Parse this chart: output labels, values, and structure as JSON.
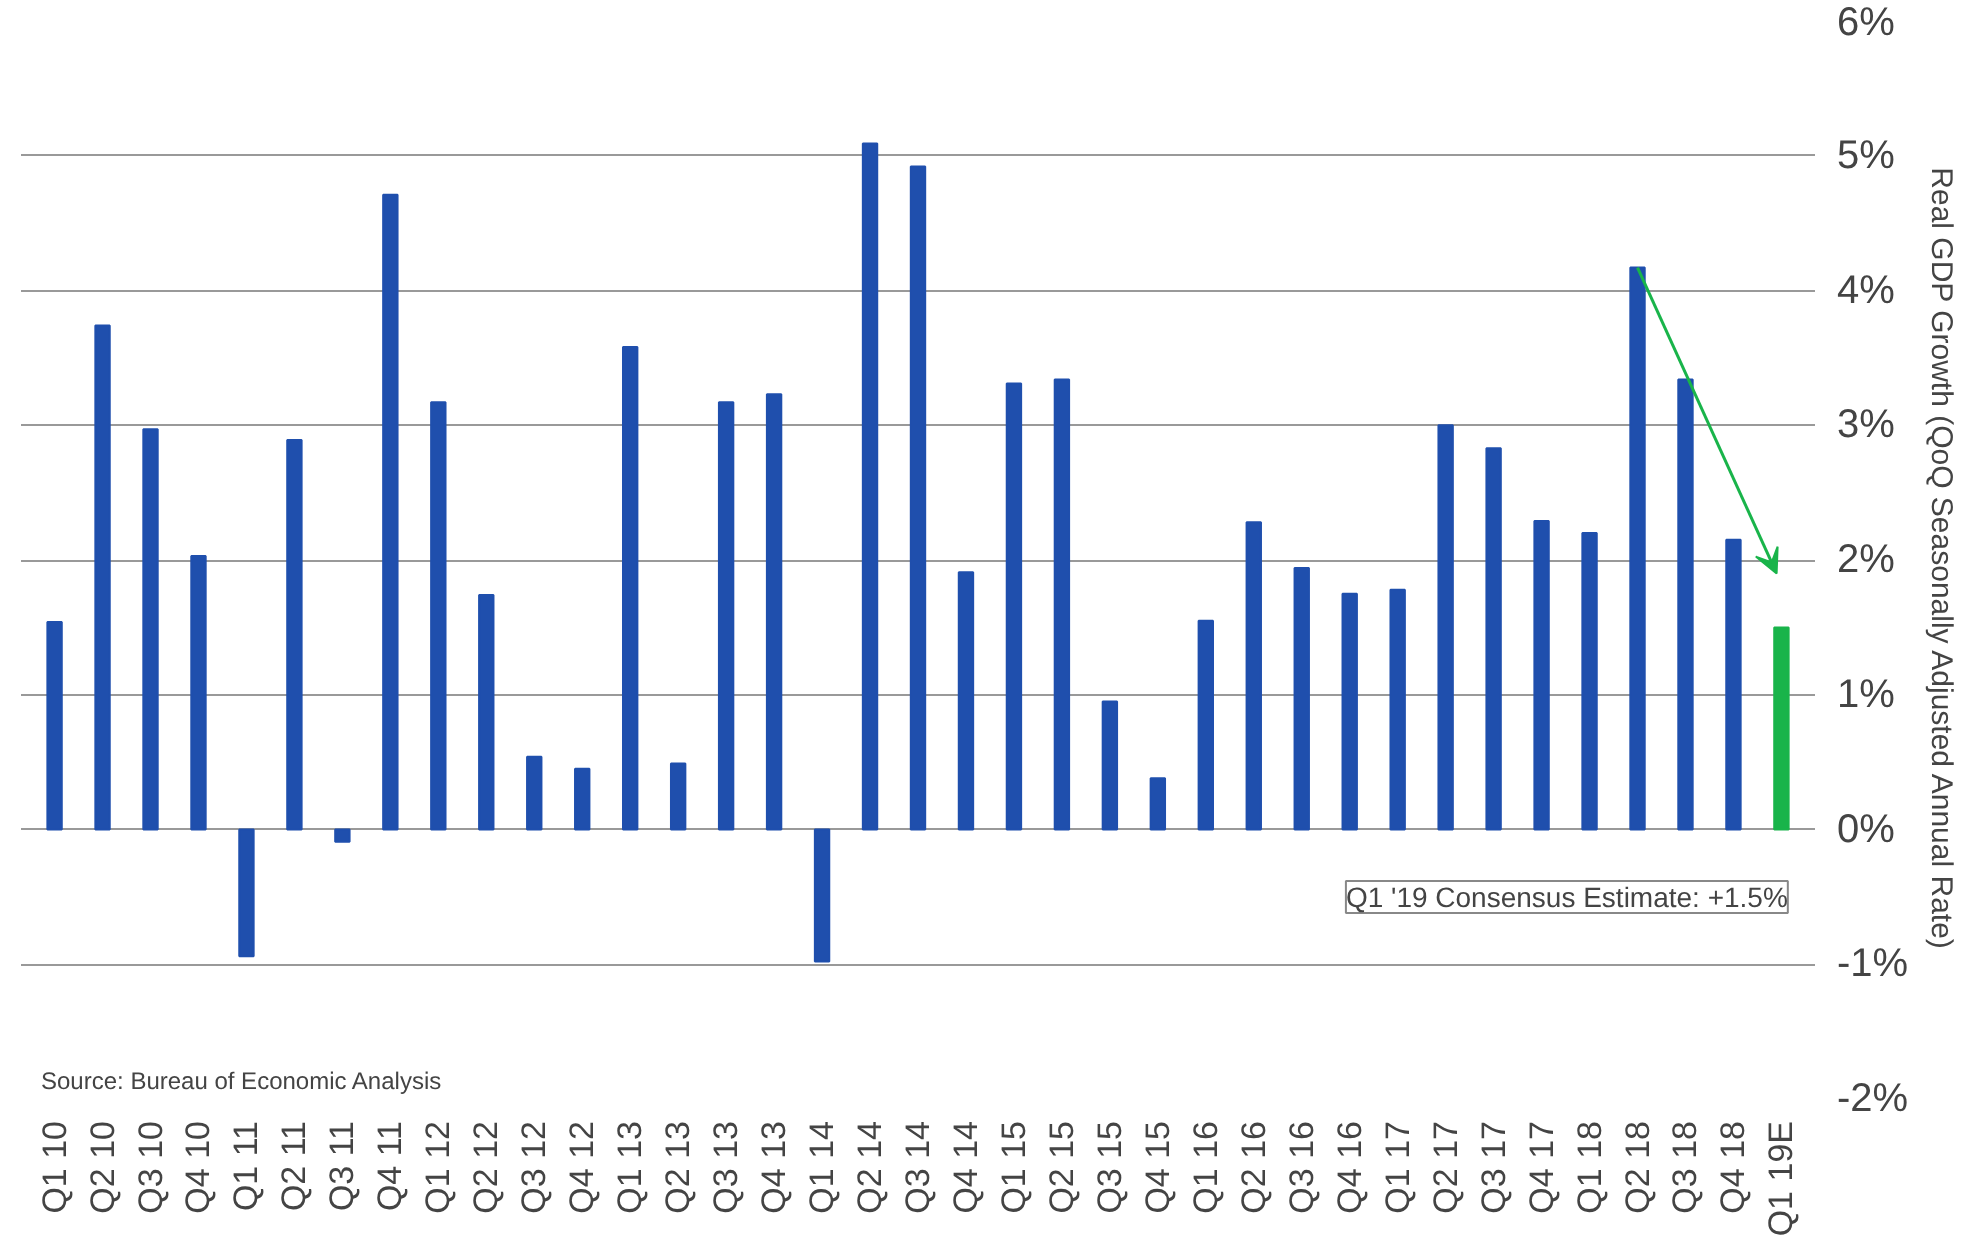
{
  "chart_data": {
    "type": "bar",
    "categories": [
      "Q1 10",
      "Q2 10",
      "Q3 10",
      "Q4 10",
      "Q1 11",
      "Q2 11",
      "Q3 11",
      "Q4 11",
      "Q1 12",
      "Q2 12",
      "Q3 12",
      "Q4 12",
      "Q1 13",
      "Q2 13",
      "Q3 13",
      "Q4 13",
      "Q1 14",
      "Q2 14",
      "Q3 14",
      "Q4 14",
      "Q1 15",
      "Q2 15",
      "Q3 15",
      "Q4 15",
      "Q1 16",
      "Q2 16",
      "Q3 16",
      "Q4 16",
      "Q1 17",
      "Q2 17",
      "Q3 17",
      "Q4 17",
      "Q1 18",
      "Q2 18",
      "Q3 18",
      "Q4 18",
      "Q1 19E"
    ],
    "values": [
      1.54,
      3.74,
      2.97,
      2.03,
      -0.94,
      2.89,
      -0.09,
      4.71,
      3.17,
      1.74,
      0.54,
      0.45,
      3.58,
      0.49,
      3.17,
      3.23,
      -0.98,
      5.09,
      4.92,
      1.91,
      3.31,
      3.34,
      0.95,
      0.38,
      1.55,
      2.28,
      1.94,
      1.75,
      1.78,
      3.0,
      2.83,
      2.29,
      2.2,
      4.17,
      3.34,
      2.15,
      1.5
    ],
    "colors": [
      "#1f4fad",
      "#1f4fad",
      "#1f4fad",
      "#1f4fad",
      "#1f4fad",
      "#1f4fad",
      "#1f4fad",
      "#1f4fad",
      "#1f4fad",
      "#1f4fad",
      "#1f4fad",
      "#1f4fad",
      "#1f4fad",
      "#1f4fad",
      "#1f4fad",
      "#1f4fad",
      "#1f4fad",
      "#1f4fad",
      "#1f4fad",
      "#1f4fad",
      "#1f4fad",
      "#1f4fad",
      "#1f4fad",
      "#1f4fad",
      "#1f4fad",
      "#1f4fad",
      "#1f4fad",
      "#1f4fad",
      "#1f4fad",
      "#1f4fad",
      "#1f4fad",
      "#1f4fad",
      "#1f4fad",
      "#1f4fad",
      "#1f4fad",
      "#1f4fad",
      "#19b44a"
    ],
    "ylabel": "Real GDP Growth (QoQ Seasonally Adjusted Annual Rate)",
    "ylim": [
      -2,
      6
    ],
    "yticks": [
      {
        "value": -2,
        "label": "-2%"
      },
      {
        "value": -1,
        "label": "-1%"
      },
      {
        "value": 0,
        "label": "0%"
      },
      {
        "value": 1,
        "label": "1%"
      },
      {
        "value": 2,
        "label": "2%"
      },
      {
        "value": 3,
        "label": "3%"
      },
      {
        "value": 4,
        "label": "4%"
      },
      {
        "value": 5,
        "label": "5%"
      },
      {
        "value": 6,
        "label": "6%"
      }
    ],
    "grid": "y",
    "annotations": [
      "Q1 '19 Consensus Estimate: +1.5%",
      "Source: Bureau of Economic Analysis"
    ]
  }
}
